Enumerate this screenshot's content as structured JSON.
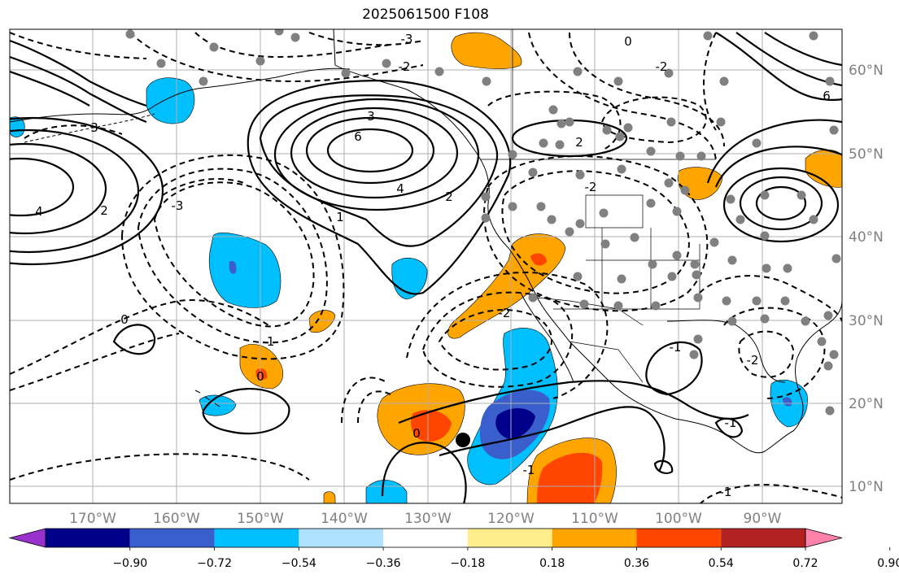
{
  "title": "2025061500 F108",
  "map": {
    "lon_labels": [
      "170°W",
      "160°W",
      "150°W",
      "140°W",
      "130°W",
      "120°W",
      "110°W",
      "100°W",
      "90°W"
    ],
    "lat_labels": [
      "60°N",
      "50°N",
      "40°N",
      "30°N",
      "20°N",
      "10°N"
    ],
    "contour_labels_solid": [
      "3",
      "6",
      "4",
      "2",
      "1",
      "0",
      "-1"
    ],
    "contour_labels_dashed": [
      "-3",
      "-2",
      "-1"
    ],
    "colors": {
      "land_outline": "#000000",
      "gridline": "#b0b0b0",
      "station_marker": "#808080",
      "point_marker": "#000000"
    }
  },
  "colorbar": {
    "tick_labels": [
      "−0.90",
      "−0.72",
      "−0.54",
      "−0.36",
      "−0.18",
      "0.18",
      "0.36",
      "0.54",
      "0.72",
      "0.90"
    ],
    "bins": [
      {
        "color": "#9932cc"
      },
      {
        "color": "#00008b"
      },
      {
        "color": "#3a5fcd"
      },
      {
        "color": "#00bfff"
      },
      {
        "color": "#b0e2ff"
      },
      {
        "color": "#ffffff"
      },
      {
        "color": "#ffec8b"
      },
      {
        "color": "#ffa500"
      },
      {
        "color": "#ff4500"
      },
      {
        "color": "#b22222"
      },
      {
        "color": "#ff82ab"
      }
    ]
  }
}
